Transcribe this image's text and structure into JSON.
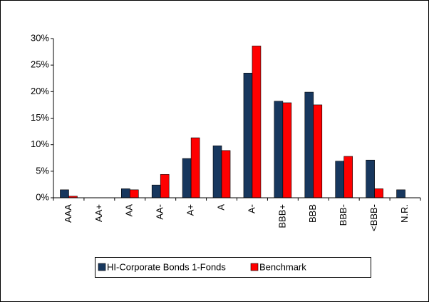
{
  "chart_data": {
    "type": "bar",
    "categories": [
      "AAA",
      "AA+",
      "AA",
      "AA-",
      "A+",
      "A",
      "A-",
      "BBB+",
      "BBB",
      "BBB-",
      "<BBB-",
      "N.R."
    ],
    "series": [
      {
        "name": "HI-Corporate Bonds 1-Fonds",
        "color": "#17375e",
        "values": [
          1.5,
          0,
          1.7,
          2.4,
          7.4,
          9.8,
          23.5,
          18.2,
          19.9,
          6.9,
          7.1,
          1.5
        ]
      },
      {
        "name": "Benchmark",
        "color": "#ff0000",
        "values": [
          0.3,
          0,
          1.5,
          4.4,
          11.3,
          8.9,
          28.6,
          17.9,
          17.5,
          7.8,
          1.7,
          0
        ]
      }
    ],
    "ylim": [
      0,
      30
    ],
    "yticks": [
      {
        "value": 0,
        "label": "0%"
      },
      {
        "value": 5,
        "label": "5%"
      },
      {
        "value": 10,
        "label": "10%"
      },
      {
        "value": 15,
        "label": "15%"
      },
      {
        "value": 20,
        "label": "20%"
      },
      {
        "value": 25,
        "label": "25%"
      },
      {
        "value": 30,
        "label": "30%"
      }
    ],
    "grid": false,
    "legend": "bottom"
  }
}
